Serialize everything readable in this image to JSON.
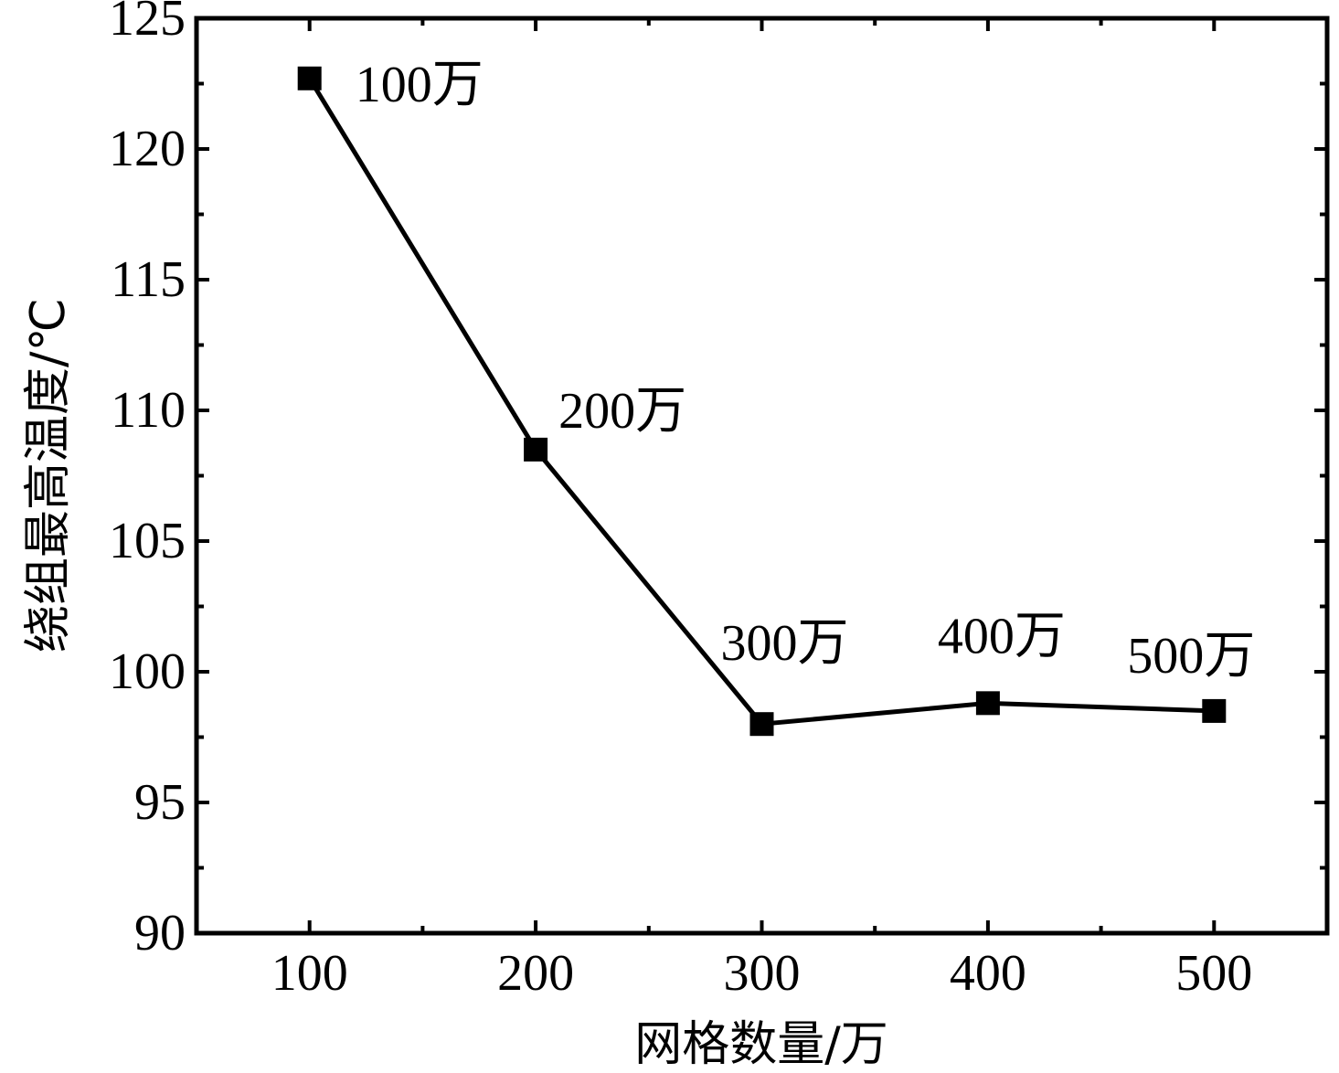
{
  "chart_data": {
    "type": "line",
    "title": "",
    "xlabel": "网格数量/万",
    "ylabel": "绕组最高温度/℃",
    "xlim": [
      50,
      550
    ],
    "ylim": [
      90,
      125
    ],
    "xticks": [
      100,
      200,
      300,
      400,
      500
    ],
    "xtick_labels": [
      "100",
      "200",
      "300",
      "400",
      "500"
    ],
    "yticks": [
      90,
      95,
      100,
      105,
      110,
      115,
      120,
      125
    ],
    "ytick_labels": [
      "90",
      "95",
      "100",
      "105",
      "110",
      "115",
      "120",
      "125"
    ],
    "grid": false,
    "legend": "none",
    "marker": "square",
    "color": "#000000",
    "series": [
      {
        "x": [
          100,
          200,
          300,
          400,
          500
        ],
        "values": [
          122.7,
          108.5,
          98.0,
          98.8,
          98.5
        ],
        "labels": [
          "100万",
          "200万",
          "300万",
          "400万",
          "500万"
        ]
      }
    ]
  }
}
